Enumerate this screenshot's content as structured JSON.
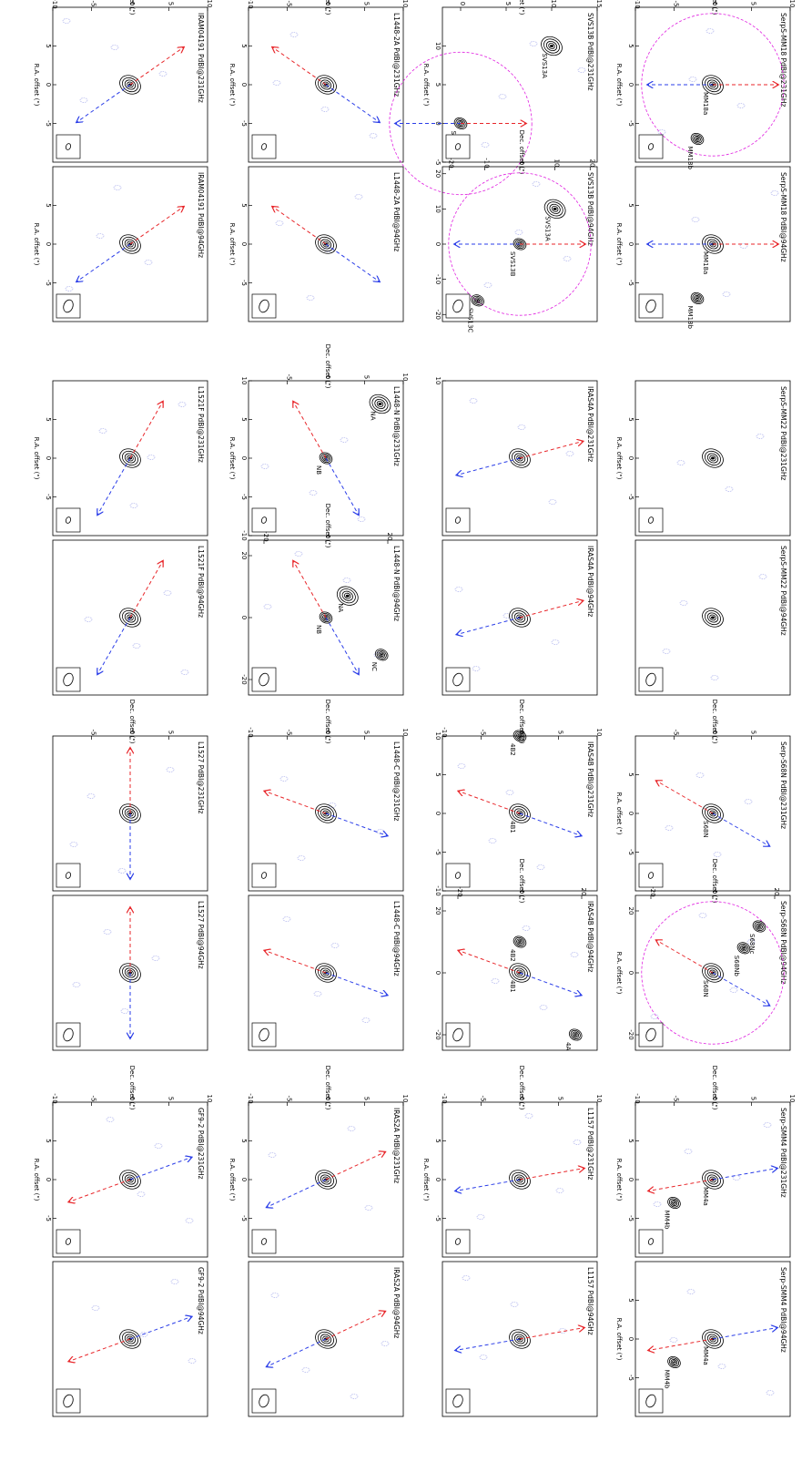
{
  "figure": {
    "rotation_note_deg": 90,
    "contour_color": "#000000",
    "noise_color": "#9aa0e8",
    "red_lobe_color": "#e8262a",
    "blue_lobe_color": "#2a3de8",
    "primary_beam_color": "#e020e0"
  },
  "chart_data": [
    {
      "type": "contour",
      "title": "IRAM04191 PdBI@231GHz",
      "xlabel": "R.A. offset (\")",
      "ylabel": "Dec. offset (\")",
      "xlim": [
        10,
        -10
      ],
      "ylim": [
        -10,
        10
      ],
      "xticks": [
        5,
        0,
        -5
      ],
      "yticks": [
        -10,
        -5,
        0,
        5,
        10
      ],
      "sources": [
        {
          "name": "",
          "x": 0,
          "y": 0
        }
      ],
      "outflow": {
        "red_pa": 35,
        "blue_pa": 215
      }
    },
    {
      "type": "contour",
      "title": "IRAM04191 PdBI@94GHz",
      "xlabel": "R.A. offset (\")",
      "ylabel": "",
      "xlim": [
        10,
        -10
      ],
      "ylim": [
        -10,
        10
      ],
      "xticks": [
        5,
        0,
        -5
      ],
      "yticks": [],
      "sources": [
        {
          "name": "",
          "x": 0,
          "y": 0
        }
      ],
      "outflow": {
        "red_pa": 35,
        "blue_pa": 215
      }
    },
    {
      "type": "contour",
      "title": "L1521F PdBI@231GHz",
      "xlabel": "R.A. offset (\")",
      "ylabel": "",
      "xlim": [
        10,
        -10
      ],
      "ylim": [
        -10,
        10
      ],
      "xticks": [
        5,
        0,
        -5
      ],
      "yticks": [],
      "sources": [
        {
          "name": "",
          "x": 0,
          "y": 0
        }
      ],
      "outflow": {
        "red_pa": 60,
        "blue_pa": 240
      }
    },
    {
      "type": "contour",
      "title": "L1521F PdBI@94GHz",
      "xlabel": "",
      "ylabel": "",
      "xlim": [
        10,
        -10
      ],
      "ylim": [
        -10,
        10
      ],
      "xticks": [],
      "yticks": [],
      "sources": [
        {
          "name": "",
          "x": 0,
          "y": 0
        }
      ],
      "outflow": {
        "red_pa": 60,
        "blue_pa": 240
      }
    },
    {
      "type": "contour",
      "title": "L1527 PdBI@231GHz",
      "xlabel": "",
      "ylabel": "Dec. offset (\")",
      "xlim": [
        10,
        -10
      ],
      "ylim": [
        -10,
        10
      ],
      "xticks": [],
      "yticks": [
        -5,
        0,
        5
      ],
      "sources": [
        {
          "name": "",
          "x": 0,
          "y": 0
        }
      ],
      "outflow": {
        "red_pa": 90,
        "blue_pa": 270
      }
    },
    {
      "type": "contour",
      "title": "L1527 PdBI@94GHz",
      "xlabel": "",
      "ylabel": "",
      "xlim": [
        10,
        -10
      ],
      "ylim": [
        -10,
        10
      ],
      "xticks": [],
      "yticks": [],
      "sources": [
        {
          "name": "",
          "x": 0,
          "y": 0
        }
      ],
      "outflow": {
        "red_pa": 90,
        "blue_pa": 270
      }
    },
    {
      "type": "contour",
      "title": "GF9-2 PdBI@231GHz",
      "xlabel": "R.A. offset (\")",
      "ylabel": "Dec. offset (\")",
      "xlim": [
        10,
        -10
      ],
      "ylim": [
        -10,
        10
      ],
      "xticks": [
        5,
        0,
        -5
      ],
      "yticks": [
        -10,
        -5,
        0,
        5,
        10
      ],
      "sources": [
        {
          "name": "",
          "x": 0,
          "y": 0
        }
      ],
      "outflow": {
        "red_pa": 200,
        "blue_pa": 20
      }
    },
    {
      "type": "contour",
      "title": "GF9-2 PdBI@94GHz",
      "xlabel": "",
      "ylabel": "",
      "xlim": [
        10,
        -10
      ],
      "ylim": [
        -10,
        10
      ],
      "xticks": [],
      "yticks": [],
      "sources": [
        {
          "name": "",
          "x": 0,
          "y": 0
        }
      ],
      "outflow": {
        "red_pa": 200,
        "blue_pa": 20
      }
    },
    {
      "type": "contour",
      "title": "L1448-2A PdBI@231GHz",
      "xlabel": "R.A. offset (\")",
      "ylabel": "Dec. offset (\")",
      "xlim": [
        10,
        -10
      ],
      "ylim": [
        -10,
        10
      ],
      "xticks": [
        5,
        0,
        -5
      ],
      "yticks": [
        -10,
        -5,
        0,
        5,
        10
      ],
      "sources": [
        {
          "name": "",
          "x": 0,
          "y": 0
        }
      ],
      "outflow": {
        "red_pa": 145,
        "blue_pa": 325
      }
    },
    {
      "type": "contour",
      "title": "L1448-2A PdBI@94GHz",
      "xlabel": "R.A. offset (\")",
      "ylabel": "",
      "xlim": [
        10,
        -10
      ],
      "ylim": [
        -10,
        10
      ],
      "xticks": [
        5,
        0,
        -5
      ],
      "yticks": [],
      "sources": [
        {
          "name": "",
          "x": 0,
          "y": 0
        }
      ],
      "outflow": {
        "red_pa": 145,
        "blue_pa": 325
      }
    },
    {
      "type": "contour",
      "title": "L1448-N PdBI@231GHz",
      "xlabel": "R.A. offset (\")",
      "ylabel": "Dec. offset (\")",
      "xlim": [
        10,
        -10
      ],
      "ylim": [
        -10,
        10
      ],
      "xticks": [
        10,
        5,
        0,
        -5,
        -10
      ],
      "yticks": [
        -5,
        0,
        5,
        10
      ],
      "sources": [
        {
          "name": "NA",
          "x": 7,
          "y": 7
        },
        {
          "name": "NB",
          "x": 0,
          "y": 0
        }
      ],
      "outflow": {
        "red_pa": 120,
        "blue_pa": 300
      }
    },
    {
      "type": "contour",
      "title": "L1448-N PdBI@94GHz",
      "xlabel": "",
      "ylabel": "Dec. offset (\")",
      "xlim": [
        25,
        -25
      ],
      "ylim": [
        -25,
        25
      ],
      "xticks": [
        20,
        0,
        -20
      ],
      "yticks": [
        -20,
        0,
        20
      ],
      "sources": [
        {
          "name": "NA",
          "x": 7,
          "y": 7
        },
        {
          "name": "NB",
          "x": 0,
          "y": 0
        },
        {
          "name": "NC",
          "x": -12,
          "y": 18
        }
      ],
      "outflow": {
        "red_pa": 120,
        "blue_pa": 300
      }
    },
    {
      "type": "contour",
      "title": "L1448-C PdBI@231GHz",
      "xlabel": "",
      "ylabel": "Dec. offset (\")",
      "xlim": [
        10,
        -10
      ],
      "ylim": [
        -10,
        10
      ],
      "xticks": [],
      "yticks": [
        -10,
        -5,
        0,
        5,
        10
      ],
      "sources": [
        {
          "name": "",
          "x": 0,
          "y": 0
        }
      ],
      "outflow": {
        "red_pa": 160,
        "blue_pa": 340
      }
    },
    {
      "type": "contour",
      "title": "L1448-C PdBI@94GHz",
      "xlabel": "",
      "ylabel": "",
      "xlim": [
        10,
        -10
      ],
      "ylim": [
        -10,
        10
      ],
      "xticks": [],
      "yticks": [],
      "sources": [
        {
          "name": "",
          "x": 0,
          "y": 0
        }
      ],
      "outflow": {
        "red_pa": 160,
        "blue_pa": 340
      }
    },
    {
      "type": "contour",
      "title": "IRAS2A PdBI@231GHz",
      "xlabel": "R.A. offset (\")",
      "ylabel": "Dec. offset (\")",
      "xlim": [
        10,
        -10
      ],
      "ylim": [
        -10,
        10
      ],
      "xticks": [
        5,
        0,
        -5
      ],
      "yticks": [
        -10,
        -5,
        0,
        5,
        10
      ],
      "sources": [
        {
          "name": "",
          "x": 0,
          "y": 0
        }
      ],
      "outflow": {
        "red_pa": 25,
        "blue_pa": 205
      }
    },
    {
      "type": "contour",
      "title": "IRAS2A PdBI@94GHz",
      "xlabel": "",
      "ylabel": "",
      "xlim": [
        10,
        -10
      ],
      "ylim": [
        -10,
        10
      ],
      "xticks": [],
      "yticks": [],
      "sources": [
        {
          "name": "",
          "x": 0,
          "y": 0
        }
      ],
      "outflow": {
        "red_pa": 25,
        "blue_pa": 205
      }
    },
    {
      "type": "contour",
      "title": "SVS13B PdBI@231GHz",
      "xlabel": "R.A. offset (\")",
      "ylabel": "Dec. offset (\")",
      "xlim": [
        15,
        -5
      ],
      "ylim": [
        -2,
        15
      ],
      "xticks": [
        10,
        5,
        0,
        -5
      ],
      "yticks": [
        0,
        5,
        10,
        15
      ],
      "sources": [
        {
          "name": "SVS13A",
          "x": 10,
          "y": 10
        },
        {
          "name": "SVS13B",
          "x": 0,
          "y": 0
        }
      ],
      "outflow": {
        "red_pa": 0,
        "blue_pa": 180
      },
      "primary_beam": true
    },
    {
      "type": "contour",
      "title": "SVS13B PdBI@94GHz",
      "xlabel": "",
      "ylabel": "Dec. offset (\")",
      "xlim": [
        22,
        -22
      ],
      "ylim": [
        -22,
        22
      ],
      "xticks": [
        20,
        10,
        0,
        -10,
        -20
      ],
      "yticks": [
        -20,
        -10,
        0,
        10,
        20
      ],
      "sources": [
        {
          "name": "SVS13A",
          "x": 10,
          "y": 10
        },
        {
          "name": "SVS13B",
          "x": 0,
          "y": 0
        },
        {
          "name": "SVS13C",
          "x": -16,
          "y": -12
        }
      ],
      "outflow": {
        "red_pa": 0,
        "blue_pa": 180
      },
      "primary_beam": true
    },
    {
      "type": "contour",
      "title": "IRAS4A PdBI@231GHz",
      "xlabel": "",
      "ylabel": "",
      "xlim": [
        10,
        -10
      ],
      "ylim": [
        -10,
        10
      ],
      "xticks": [
        10
      ],
      "yticks": [],
      "sources": [
        {
          "name": "",
          "x": 0,
          "y": 0
        }
      ],
      "outflow": {
        "red_pa": 15,
        "blue_pa": 195
      }
    },
    {
      "type": "contour",
      "title": "IRAS4A PdBI@94GHz",
      "xlabel": "",
      "ylabel": "",
      "xlim": [
        10,
        -10
      ],
      "ylim": [
        -10,
        10
      ],
      "xticks": [],
      "yticks": [],
      "sources": [
        {
          "name": "",
          "x": 0,
          "y": 0
        }
      ],
      "outflow": {
        "red_pa": 15,
        "blue_pa": 195
      }
    },
    {
      "type": "contour",
      "title": "IRAS4B PdBI@231GHz",
      "xlabel": "",
      "ylabel": "Dec. offset (\")",
      "xlim": [
        10,
        -10
      ],
      "ylim": [
        -10,
        10
      ],
      "xticks": [
        10,
        5,
        0,
        -5,
        -10
      ],
      "yticks": [
        -10,
        -5,
        0,
        5,
        10
      ],
      "sources": [
        {
          "name": "4B1",
          "x": 0,
          "y": 0
        },
        {
          "name": "4B2",
          "x": 10,
          "y": 0
        }
      ],
      "outflow": {
        "red_pa": 160,
        "blue_pa": 340
      }
    },
    {
      "type": "contour",
      "title": "IRAS4B PdBI@94GHz",
      "xlabel": "",
      "ylabel": "Dec. offset (\")",
      "xlim": [
        25,
        -25
      ],
      "ylim": [
        -25,
        25
      ],
      "xticks": [
        20,
        0,
        -20
      ],
      "yticks": [
        -20,
        0,
        20
      ],
      "sources": [
        {
          "name": "4B1",
          "x": 0,
          "y": 0
        },
        {
          "name": "4B2",
          "x": 10,
          "y": 0
        },
        {
          "name": "4A",
          "x": -20,
          "y": 18
        }
      ],
      "outflow": {
        "red_pa": 160,
        "blue_pa": 340
      }
    },
    {
      "type": "contour",
      "title": "L1157 PdBI@231GHz",
      "xlabel": "R.A. offset (\")",
      "ylabel": "Dec. offset (\")",
      "xlim": [
        10,
        -10
      ],
      "ylim": [
        -10,
        10
      ],
      "xticks": [
        5,
        0,
        -5
      ],
      "yticks": [
        -10,
        -5,
        0,
        5,
        10
      ],
      "sources": [
        {
          "name": "",
          "x": 0,
          "y": 0
        }
      ],
      "outflow": {
        "red_pa": 10,
        "blue_pa": 190
      }
    },
    {
      "type": "contour",
      "title": "L1157 PdBI@94GHz",
      "xlabel": "",
      "ylabel": "",
      "xlim": [
        10,
        -10
      ],
      "ylim": [
        -10,
        10
      ],
      "xticks": [],
      "yticks": [],
      "sources": [
        {
          "name": "",
          "x": 0,
          "y": 0
        }
      ],
      "outflow": {
        "red_pa": 10,
        "blue_pa": 190
      }
    },
    {
      "type": "contour",
      "title": "SerpS-MM18 PdBI@231GHz",
      "xlabel": "R.A. offset (\")",
      "ylabel": "Dec. offset (\")",
      "xlim": [
        10,
        -10
      ],
      "ylim": [
        -10,
        10
      ],
      "xticks": [
        5,
        0,
        -5
      ],
      "yticks": [
        -10,
        -5,
        0,
        5,
        10
      ],
      "sources": [
        {
          "name": "MM18a",
          "x": 0,
          "y": 0
        },
        {
          "name": "MM18b",
          "x": -7,
          "y": -2
        }
      ],
      "outflow": {
        "red_pa": 0,
        "blue_pa": 180
      },
      "primary_beam": true
    },
    {
      "type": "contour",
      "title": "SerpS-MM18 PdBI@94GHz",
      "xlabel": "R.A. offset (\")",
      "ylabel": "",
      "xlim": [
        10,
        -10
      ],
      "ylim": [
        -10,
        10
      ],
      "xticks": [
        5,
        0,
        -5
      ],
      "yticks": [],
      "sources": [
        {
          "name": "MM18a",
          "x": 0,
          "y": 0
        },
        {
          "name": "MM18b",
          "x": -7,
          "y": -2
        }
      ],
      "outflow": {
        "red_pa": 0,
        "blue_pa": 180
      }
    },
    {
      "type": "contour",
      "title": "SerpS-MM22 PdBI@231GHz",
      "xlabel": "R.A. offset (\")",
      "ylabel": "",
      "xlim": [
        10,
        -10
      ],
      "ylim": [
        -10,
        10
      ],
      "xticks": [
        5,
        0,
        -5
      ],
      "yticks": [],
      "sources": [
        {
          "name": "",
          "x": 0,
          "y": 0
        }
      ]
    },
    {
      "type": "contour",
      "title": "SerpS-MM22 PdBI@94GHz",
      "xlabel": "",
      "ylabel": "",
      "xlim": [
        10,
        -10
      ],
      "ylim": [
        -10,
        10
      ],
      "xticks": [],
      "yticks": [],
      "sources": [
        {
          "name": "",
          "x": 0,
          "y": 0
        }
      ]
    },
    {
      "type": "contour",
      "title": "Serp-S68N PdBI@231GHz",
      "xlabel": "R.A. offset (\")",
      "ylabel": "Dec. offset (\")",
      "xlim": [
        10,
        -10
      ],
      "ylim": [
        -10,
        10
      ],
      "xticks": [
        5,
        0,
        -5
      ],
      "yticks": [
        -5,
        0,
        5
      ],
      "sources": [
        {
          "name": "S68N",
          "x": 0,
          "y": 0
        }
      ],
      "outflow": {
        "red_pa": 150,
        "blue_pa": 330
      }
    },
    {
      "type": "contour",
      "title": "Serp-S68N PdBI@94GHz",
      "xlabel": "R.A. offset (\")",
      "ylabel": "Dec. offset (\")",
      "xlim": [
        25,
        -25
      ],
      "ylim": [
        -25,
        25
      ],
      "xticks": [
        20,
        0,
        -20
      ],
      "yticks": [
        -20,
        0,
        20
      ],
      "sources": [
        {
          "name": "S68N",
          "x": 0,
          "y": 0
        },
        {
          "name": "S68Nb",
          "x": 8,
          "y": 10
        },
        {
          "name": "S68Nc",
          "x": 15,
          "y": 15
        }
      ],
      "outflow": {
        "red_pa": 150,
        "blue_pa": 330
      },
      "primary_beam": true
    },
    {
      "type": "contour",
      "title": "Serp-SMM4 PdBI@231GHz",
      "xlabel": "R.A. offset (\")",
      "ylabel": "Dec. offset (\")",
      "xlim": [
        10,
        -10
      ],
      "ylim": [
        -10,
        10
      ],
      "xticks": [
        5,
        0,
        -5
      ],
      "yticks": [
        -10,
        -5,
        0,
        5,
        10
      ],
      "sources": [
        {
          "name": "MM4a",
          "x": 0,
          "y": 0
        },
        {
          "name": "MM4b",
          "x": -3,
          "y": -5
        }
      ],
      "outflow": {
        "red_pa": 190,
        "blue_pa": 10
      }
    },
    {
      "type": "contour",
      "title": "Serp-SMM4 PdBI@94GHz",
      "xlabel": "R.A. offset (\")",
      "ylabel": "",
      "xlim": [
        10,
        -10
      ],
      "ylim": [
        -10,
        10
      ],
      "xticks": [
        5,
        0,
        -5
      ],
      "yticks": [],
      "sources": [
        {
          "name": "MM4a",
          "x": 0,
          "y": 0
        },
        {
          "name": "MM4b",
          "x": -3,
          "y": -5
        }
      ],
      "outflow": {
        "red_pa": 190,
        "blue_pa": 10
      }
    }
  ]
}
